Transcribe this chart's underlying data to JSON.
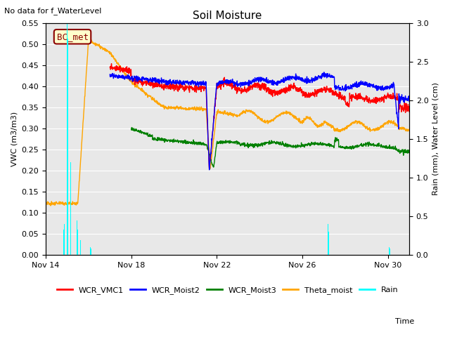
{
  "title": "Soil Moisture",
  "subtitle": "No data for f_WaterLevel",
  "ylabel_left": "VWC (m3/m3)",
  "ylabel_right": "Rain (mm), Water Level (cm)",
  "xlabel": "Time",
  "ylim_left": [
    0.0,
    0.55
  ],
  "ylim_right": [
    0.0,
    3.0
  ],
  "bg_color": "#e8e8e8",
  "annotation_box": "BC_met",
  "annotation_color": "#8B0000",
  "annotation_bg": "#ffffcc"
}
